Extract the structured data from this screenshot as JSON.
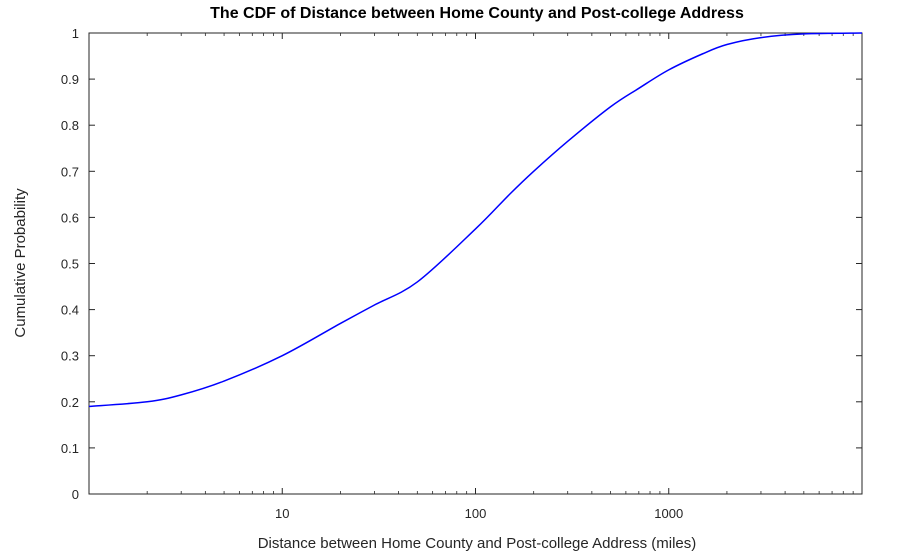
{
  "chart_data": {
    "type": "line",
    "title": "The CDF of Distance between Home County and Post-college Address",
    "xlabel": "Distance between Home County and Post-college Address (miles)",
    "ylabel": "Cumulative Probability",
    "xscale": "log",
    "xlim": [
      1,
      10000
    ],
    "ylim": [
      0,
      1
    ],
    "xticks": [
      10,
      100,
      1000
    ],
    "xtick_labels": [
      "10",
      "100",
      "1000"
    ],
    "yticks": [
      0,
      0.1,
      0.2,
      0.3,
      0.4,
      0.5,
      0.6,
      0.7,
      0.8,
      0.9,
      1
    ],
    "ytick_labels": [
      "0",
      "0.1",
      "0.2",
      "0.3",
      "0.4",
      "0.5",
      "0.6",
      "0.7",
      "0.8",
      "0.9",
      "1"
    ],
    "grid": false,
    "legend": false,
    "series": [
      {
        "color": "#0000ff",
        "x": [
          1,
          2,
          3,
          5,
          10,
          20,
          30,
          50,
          100,
          150,
          200,
          300,
          500,
          700,
          1000,
          1500,
          2000,
          3000,
          5000,
          10000
        ],
        "y": [
          0.19,
          0.2,
          0.215,
          0.245,
          0.3,
          0.37,
          0.41,
          0.46,
          0.575,
          0.65,
          0.7,
          0.765,
          0.84,
          0.88,
          0.92,
          0.955,
          0.975,
          0.99,
          0.998,
          1.0
        ]
      }
    ]
  }
}
